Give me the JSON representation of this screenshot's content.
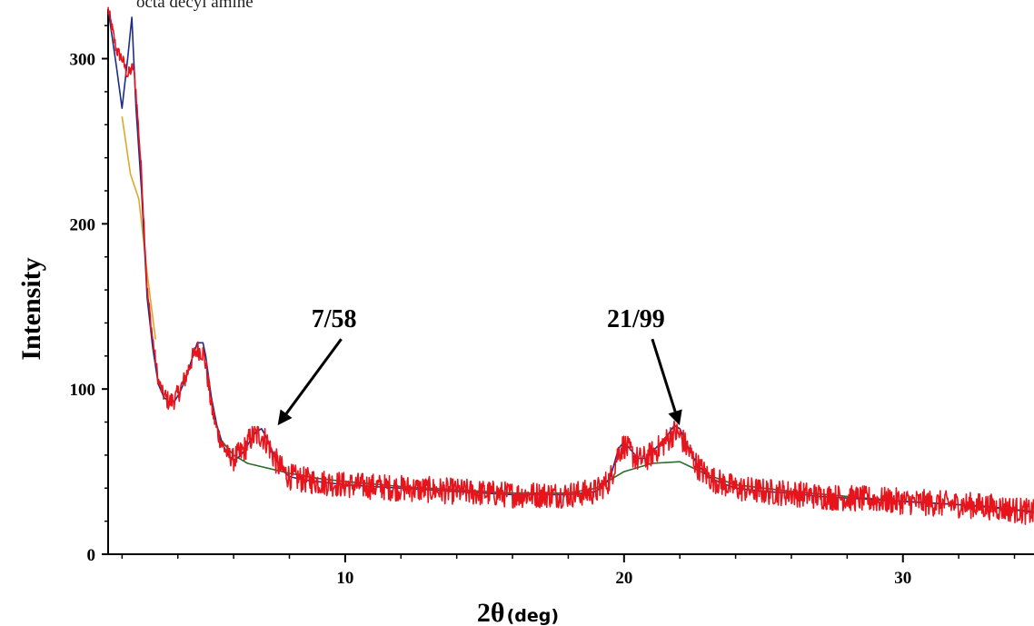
{
  "chart_data": {
    "type": "line",
    "title_partial": "octa decyl amine",
    "xlabel": "2θ",
    "xlabel_unit": "(deg)",
    "ylabel": "Intensity",
    "xlim": [
      1.5,
      34.7
    ],
    "ylim": [
      0,
      330
    ],
    "x_ticks": [
      10,
      20,
      30
    ],
    "y_ticks": [
      0,
      100,
      200,
      300
    ],
    "grid": false,
    "annotations": [
      {
        "text": "7/58",
        "x": 7.58,
        "y": 78
      },
      {
        "text": "21/99",
        "x": 21.99,
        "y": 78
      }
    ],
    "series": [
      {
        "color": "#e8141c",
        "style": "noisy",
        "x": [
          1.5,
          1.8,
          2.0,
          2.2,
          2.4,
          2.5,
          2.7,
          2.9,
          3.1,
          3.3,
          3.5,
          3.7,
          3.9,
          4.1,
          4.3,
          4.5,
          4.7,
          4.9,
          5.0,
          5.2,
          5.4,
          5.6,
          5.8,
          6.0,
          6.2,
          6.4,
          6.6,
          6.8,
          7.0,
          7.2,
          7.4,
          7.6,
          7.8,
          8.0,
          8.5,
          9.0,
          10.0,
          11.0,
          12.0,
          13.0,
          14.0,
          15.0,
          16.0,
          17.0,
          18.0,
          19.0,
          19.5,
          19.8,
          20.0,
          20.2,
          20.5,
          20.8,
          21.0,
          21.3,
          21.6,
          21.8,
          22.0,
          22.3,
          22.6,
          23.0,
          23.5,
          24.0,
          25.0,
          26.0,
          27.0,
          28.0,
          29.0,
          30.0,
          31.0,
          32.0,
          33.0,
          34.0,
          34.7
        ],
        "y": [
          330,
          305,
          300,
          290,
          295,
          280,
          230,
          160,
          130,
          105,
          96,
          92,
          94,
          100,
          108,
          118,
          124,
          122,
          115,
          90,
          75,
          66,
          60,
          58,
          60,
          64,
          70,
          72,
          72,
          68,
          60,
          54,
          50,
          47,
          45,
          44,
          42,
          41,
          40,
          39,
          38,
          37,
          36,
          36,
          36,
          38,
          45,
          62,
          66,
          62,
          57,
          58,
          61,
          65,
          70,
          74,
          72,
          63,
          54,
          47,
          43,
          40,
          38,
          37,
          35,
          34,
          33,
          32,
          31,
          30,
          29,
          27,
          25
        ]
      },
      {
        "color": "#1a2d8c",
        "style": "smooth",
        "x": [
          1.5,
          1.8,
          2.0,
          2.2,
          2.35,
          2.5,
          2.7,
          2.9,
          3.1,
          3.3,
          3.5,
          3.7,
          3.9,
          4.1,
          4.3,
          4.5,
          4.7,
          4.9,
          5.0,
          5.2,
          5.4,
          5.6,
          5.8,
          6.0,
          6.2,
          6.4,
          6.6,
          6.8,
          7.0,
          7.2,
          7.4,
          7.6,
          7.8,
          8.0,
          8.5,
          9.0,
          10.0,
          11.0,
          12.0,
          13.0,
          14.0,
          15.0,
          16.0,
          17.0,
          18.0,
          19.0,
          19.5,
          19.8,
          20.0,
          20.2,
          20.5,
          20.8,
          21.0,
          21.3,
          21.6,
          21.8,
          22.0,
          22.3,
          22.6,
          23.0,
          23.5,
          24.0,
          25.0,
          26.0,
          27.0,
          28.0,
          29.0,
          30.0,
          31.0,
          32.0,
          33.0,
          34.0,
          34.7
        ],
        "y": [
          330,
          295,
          270,
          300,
          325,
          270,
          220,
          155,
          125,
          103,
          95,
          92,
          93,
          99,
          107,
          118,
          128,
          128,
          120,
          95,
          78,
          67,
          60,
          57,
          59,
          63,
          69,
          74,
          76,
          70,
          62,
          55,
          50,
          47,
          45,
          44,
          42,
          41,
          40,
          39,
          38,
          37,
          36,
          36,
          36,
          38,
          46,
          64,
          68,
          64,
          58,
          58,
          62,
          67,
          73,
          78,
          76,
          65,
          55,
          47,
          43,
          40,
          38,
          37,
          35,
          34,
          33,
          32,
          31,
          30,
          29,
          27,
          25
        ]
      },
      {
        "color": "#2a6b2a",
        "style": "smooth",
        "x": [
          5.5,
          6.0,
          6.5,
          7.0,
          7.5,
          8.0,
          9.0,
          10.0,
          12.0,
          14.0,
          16.0,
          18.0,
          19.0,
          20.0,
          21.0,
          22.0,
          23.0,
          24.0,
          26.0,
          28.0,
          30.0,
          32.0,
          34.0,
          34.7
        ],
        "y": [
          70,
          60,
          55,
          53,
          51,
          49,
          46,
          44,
          41,
          39,
          37,
          37,
          40,
          50,
          55,
          56,
          48,
          42,
          38,
          35,
          32,
          30,
          27,
          26
        ]
      },
      {
        "color": "#e0a82a",
        "style": "smooth",
        "x": [
          2.0,
          2.3,
          2.6,
          2.9,
          3.2
        ],
        "y": [
          265,
          230,
          215,
          170,
          130
        ]
      }
    ]
  }
}
